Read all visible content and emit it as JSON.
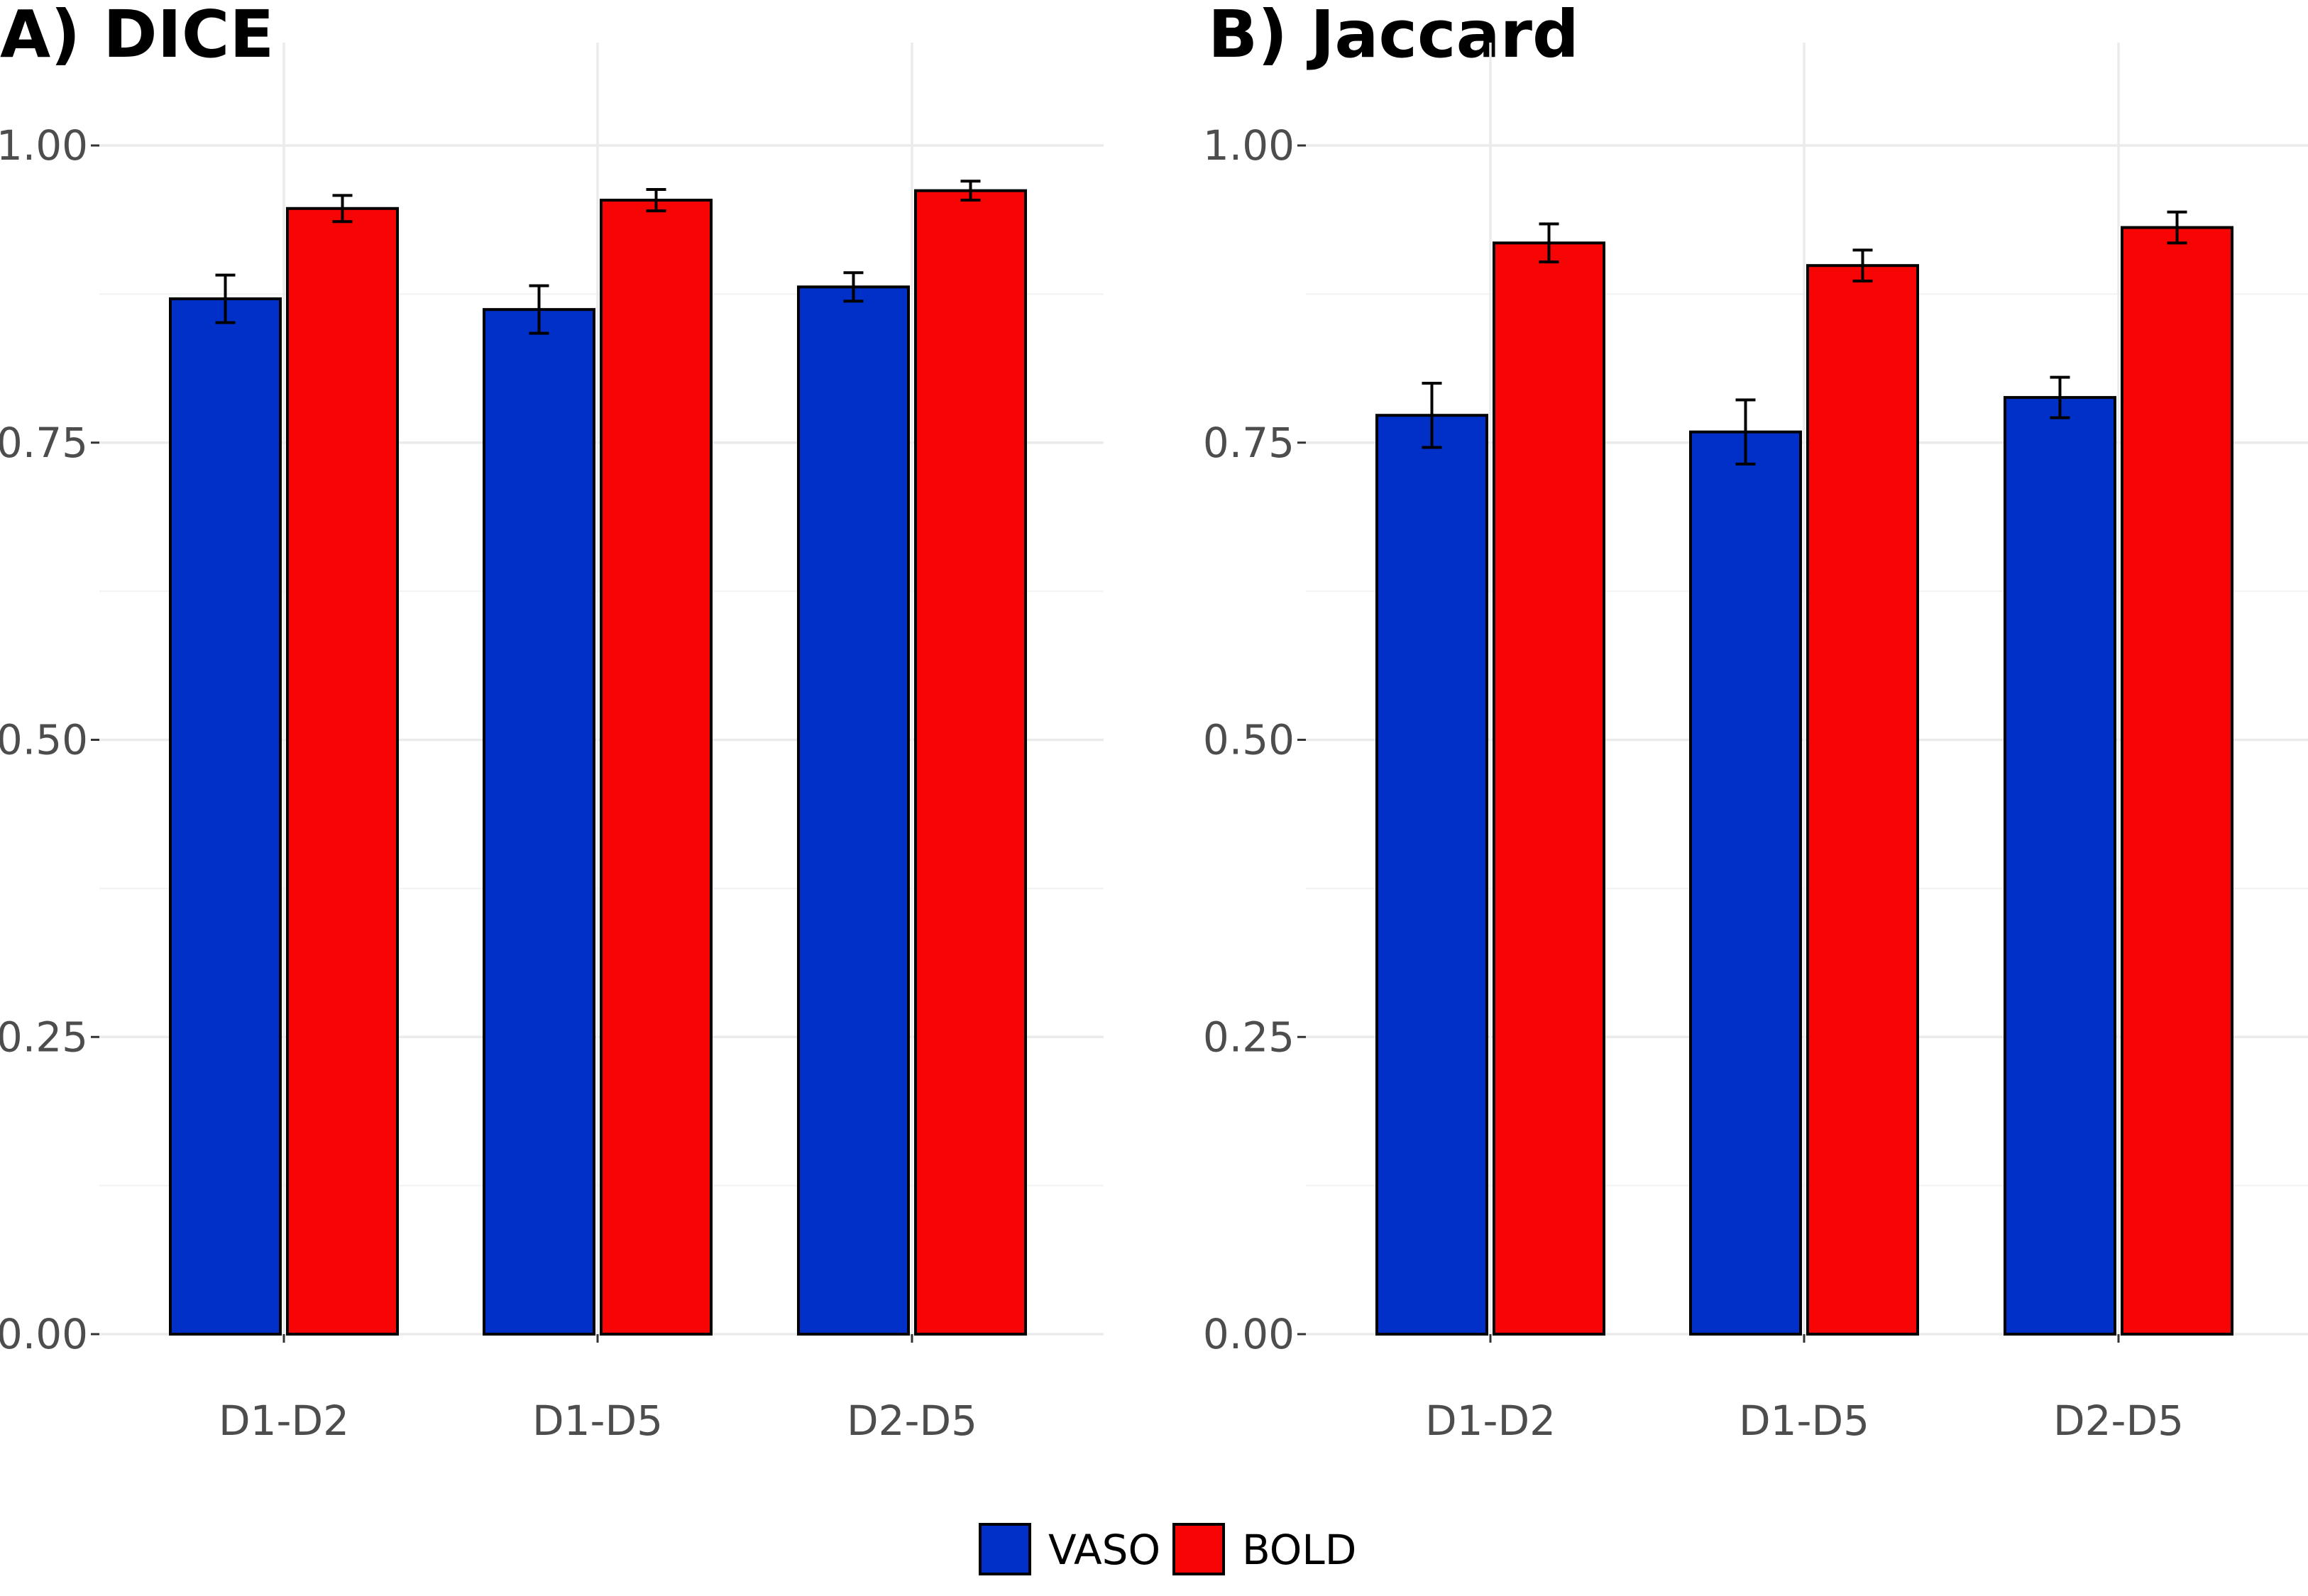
{
  "colors": {
    "VASO": "#0030C8",
    "BOLD": "#F70505"
  },
  "legend": {
    "items": [
      {
        "label": "VASO",
        "color": "#0030C8"
      },
      {
        "label": "BOLD",
        "color": "#F70505"
      }
    ]
  },
  "chart_data": [
    {
      "type": "bar",
      "title": "A) DICE",
      "categories": [
        "D1-D2",
        "D1-D5",
        "D2-D5"
      ],
      "series": [
        {
          "name": "VASO",
          "values": [
            0.871,
            0.862,
            0.881
          ],
          "errors": [
            0.02,
            0.02,
            0.012
          ]
        },
        {
          "name": "BOLD",
          "values": [
            0.947,
            0.954,
            0.962
          ],
          "errors": [
            0.011,
            0.009,
            0.008
          ]
        }
      ],
      "ylim": [
        0,
        1.05
      ],
      "yticks": [
        0.0,
        0.25,
        0.5,
        0.75,
        1.0
      ],
      "ytick_labels": [
        "0.00",
        "0.25",
        "0.50",
        "0.75",
        "1.00"
      ],
      "xlabel": "",
      "ylabel": "",
      "grid": true,
      "legend_position": "bottom"
    },
    {
      "type": "bar",
      "title": "B) Jaccard",
      "categories": [
        "D1-D2",
        "D1-D5",
        "D2-D5"
      ],
      "series": [
        {
          "name": "VASO",
          "values": [
            0.773,
            0.759,
            0.788
          ],
          "errors": [
            0.027,
            0.027,
            0.017
          ]
        },
        {
          "name": "BOLD",
          "values": [
            0.918,
            0.899,
            0.931
          ],
          "errors": [
            0.016,
            0.013,
            0.013
          ]
        }
      ],
      "ylim": [
        0,
        1.05
      ],
      "yticks": [
        0.0,
        0.25,
        0.5,
        0.75,
        1.0
      ],
      "ytick_labels": [
        "0.00",
        "0.25",
        "0.50",
        "0.75",
        "1.00"
      ],
      "xlabel": "",
      "ylabel": "",
      "grid": true,
      "legend_position": "bottom"
    }
  ]
}
